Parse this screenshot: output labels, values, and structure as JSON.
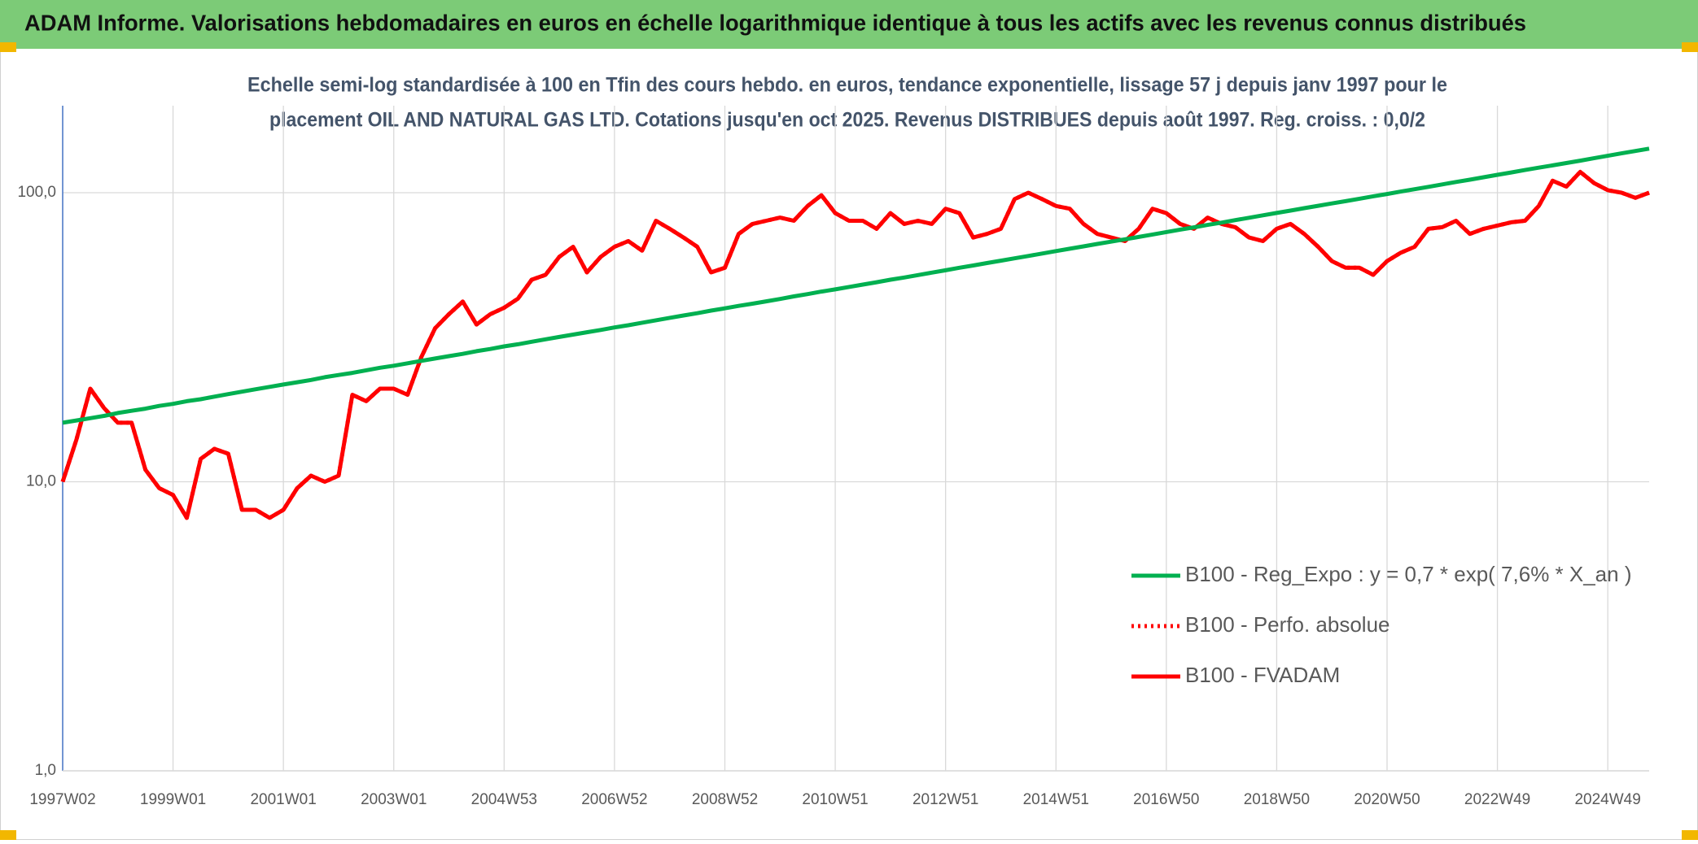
{
  "chart_data": {
    "type": "line",
    "title": "ADAM Informe. Valorisations hebdomadaires en euros en échelle logarithmique identique à tous les actifs avec les revenus connus distribués",
    "subtitle": [
      "Echelle semi-log standardisée à 100 en Tfin des cours hebdo. en euros, tendance exponentielle, lissage 57 j depuis janv 1997 pour le",
      "placement OIL AND NATURAL GAS LTD. Cotations jusqu'en oct 2025. Revenus DISTRIBUES depuis août 1997. Reg. croiss. : 0,0/2"
    ],
    "log_scale": true,
    "grid": true,
    "ylim": [
      1,
      200
    ],
    "yticks": [
      {
        "value": 1,
        "label": "1,0"
      },
      {
        "value": 10,
        "label": "10,0"
      },
      {
        "value": 100,
        "label": "100,0"
      }
    ],
    "categories": [
      "1997W02",
      null,
      null,
      null,
      null,
      null,
      null,
      null,
      "1999W01",
      null,
      null,
      null,
      null,
      null,
      null,
      null,
      "2001W01",
      null,
      null,
      null,
      null,
      null,
      null,
      null,
      "2003W01",
      null,
      null,
      null,
      null,
      null,
      null,
      null,
      "2004W53",
      null,
      null,
      null,
      null,
      null,
      null,
      null,
      "2006W52",
      null,
      null,
      null,
      null,
      null,
      null,
      null,
      "2008W52",
      null,
      null,
      null,
      null,
      null,
      null,
      null,
      "2010W51",
      null,
      null,
      null,
      null,
      null,
      null,
      null,
      "2012W51",
      null,
      null,
      null,
      null,
      null,
      null,
      null,
      "2014W51",
      null,
      null,
      null,
      null,
      null,
      null,
      null,
      "2016W50",
      null,
      null,
      null,
      null,
      null,
      null,
      null,
      "2018W50",
      null,
      null,
      null,
      null,
      null,
      null,
      null,
      "2020W50",
      null,
      null,
      null,
      null,
      null,
      null,
      null,
      "2022W49",
      null,
      null,
      null,
      null,
      null,
      null,
      null,
      "2024W49",
      null,
      null,
      null
    ],
    "series": [
      {
        "name": "B100 - Reg_Expo : y = 0,7 * exp( 7,6% *  X_an )",
        "color": "#00b050",
        "dash": false,
        "values": [
          16.0,
          16.3,
          16.6,
          16.9,
          17.3,
          17.6,
          17.9,
          18.3,
          18.6,
          19.0,
          19.3,
          19.7,
          20.1,
          20.5,
          20.9,
          21.3,
          21.7,
          22.1,
          22.5,
          23.0,
          23.4,
          23.8,
          24.3,
          24.8,
          25.2,
          25.7,
          26.2,
          26.7,
          27.2,
          27.7,
          28.3,
          28.8,
          29.4,
          29.9,
          30.5,
          31.1,
          31.7,
          32.3,
          32.9,
          33.5,
          34.2,
          34.8,
          35.5,
          36.2,
          36.9,
          37.6,
          38.3,
          39.1,
          39.8,
          40.6,
          41.3,
          42.1,
          42.9,
          43.8,
          44.6,
          45.5,
          46.3,
          47.2,
          48.1,
          49.0,
          50.0,
          50.9,
          51.9,
          52.9,
          53.9,
          55.0,
          56.0,
          57.1,
          58.2,
          59.3,
          60.4,
          61.6,
          62.8,
          64.0,
          65.2,
          66.5,
          67.7,
          69.0,
          70.3,
          71.7,
          73.1,
          74.5,
          75.9,
          77.4,
          78.8,
          80.4,
          81.9,
          83.5,
          85.1,
          86.7,
          88.4,
          90.1,
          91.8,
          93.5,
          95.3,
          97.2,
          99.0,
          100.9,
          102.8,
          104.8,
          106.8,
          108.9,
          110.9,
          113.1,
          115.3,
          117.5,
          119.8,
          122.1,
          124.3,
          126.7,
          129.1,
          131.6,
          134.2,
          136.8,
          139.4,
          142.1
        ]
      },
      {
        "name": "B100 - Perfo. absolue",
        "color": "#ff0000",
        "dash": true,
        "values": [
          10,
          14,
          21,
          18,
          16,
          16,
          11,
          9.5,
          9,
          7.5,
          12,
          13,
          12.5,
          8,
          8,
          7.5,
          8,
          9.5,
          10.5,
          10,
          10.5,
          20,
          19,
          21,
          21,
          20,
          27,
          34,
          38,
          42,
          35,
          38,
          40,
          43,
          50,
          52,
          60,
          65,
          53,
          60,
          65,
          68,
          63,
          80,
          75,
          70,
          65,
          53,
          55,
          72,
          78,
          80,
          82,
          80,
          90,
          98,
          85,
          80,
          80,
          75,
          85,
          78,
          80,
          78,
          88,
          85,
          70,
          72,
          75,
          95,
          100,
          95,
          90,
          88,
          78,
          72,
          70,
          68,
          75,
          88,
          85,
          78,
          75,
          82,
          78,
          76,
          70,
          68,
          75,
          78,
          72,
          65,
          58,
          55,
          55,
          52,
          58,
          62,
          65,
          75,
          76,
          80,
          72,
          75,
          77,
          79,
          80,
          90,
          110,
          105,
          118,
          108,
          102,
          100,
          96,
          100
        ]
      },
      {
        "name": "B100 - FVADAM",
        "color": "#ff0000",
        "dash": false,
        "values": [
          10,
          14,
          21,
          18,
          16,
          16,
          11,
          9.5,
          9,
          7.5,
          12,
          13,
          12.5,
          8,
          8,
          7.5,
          8,
          9.5,
          10.5,
          10,
          10.5,
          20,
          19,
          21,
          21,
          20,
          27,
          34,
          38,
          42,
          35,
          38,
          40,
          43,
          50,
          52,
          60,
          65,
          53,
          60,
          65,
          68,
          63,
          80,
          75,
          70,
          65,
          53,
          55,
          72,
          78,
          80,
          82,
          80,
          90,
          98,
          85,
          80,
          80,
          75,
          85,
          78,
          80,
          78,
          88,
          85,
          70,
          72,
          75,
          95,
          100,
          95,
          90,
          88,
          78,
          72,
          70,
          68,
          75,
          88,
          85,
          78,
          75,
          82,
          78,
          76,
          70,
          68,
          75,
          78,
          72,
          65,
          58,
          55,
          55,
          52,
          58,
          62,
          65,
          75,
          76,
          80,
          72,
          75,
          77,
          79,
          80,
          90,
          110,
          105,
          118,
          108,
          102,
          100,
          96,
          100
        ]
      }
    ]
  }
}
